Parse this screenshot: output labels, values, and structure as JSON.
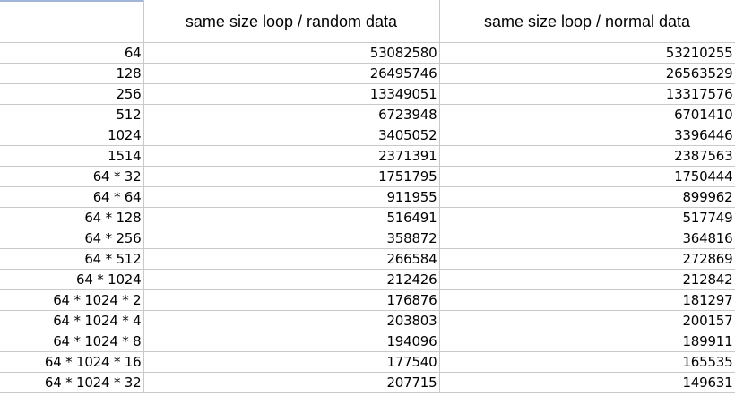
{
  "table": {
    "headers": [
      "",
      "same size loop / random data",
      "same size loop / normal data"
    ],
    "rows": [
      [
        "64",
        "53082580",
        "53210255"
      ],
      [
        "128",
        "26495746",
        "26563529"
      ],
      [
        "256",
        "13349051",
        "13317576"
      ],
      [
        "512",
        "6723948",
        "6701410"
      ],
      [
        "1024",
        "3405052",
        "3396446"
      ],
      [
        "1514",
        "2371391",
        "2387563"
      ],
      [
        "64 * 32",
        "1751795",
        "1750444"
      ],
      [
        "64 * 64",
        "911955",
        "899962"
      ],
      [
        "64 * 128",
        "516491",
        "517749"
      ],
      [
        "64 * 256",
        "358872",
        "364816"
      ],
      [
        "64 * 512",
        "266584",
        "272869"
      ],
      [
        "64 * 1024",
        "212426",
        "212842"
      ],
      [
        "64 * 1024 * 2",
        "176876",
        "181297"
      ],
      [
        "64 * 1024 * 4",
        "203803",
        "200157"
      ],
      [
        "64 * 1024 * 8",
        "194096",
        "189911"
      ],
      [
        "64 * 1024 * 16",
        "177540",
        "165535"
      ],
      [
        "64 * 1024 * 32",
        "207715",
        "149631"
      ]
    ]
  },
  "colors": {
    "gridline": "#c9c9c9",
    "selection": "#9fb6d8",
    "background": "#ffffff",
    "text": "#000000"
  }
}
